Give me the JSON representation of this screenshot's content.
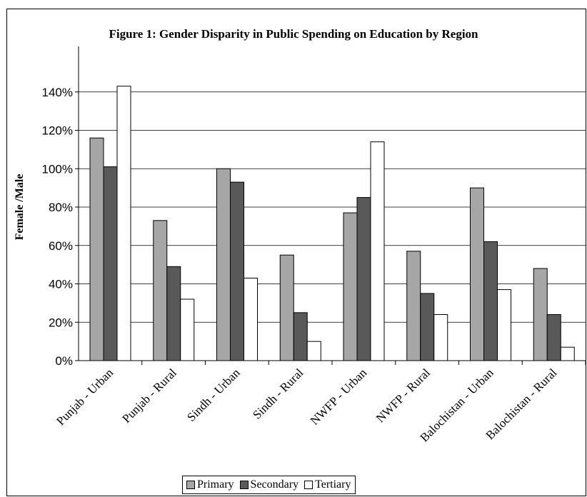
{
  "chart_data": {
    "type": "bar",
    "title": "Figure 1:   Gender Disparity in Public Spending on Education by Region",
    "ylabel": "Female /Male",
    "xlabel": "",
    "ylim": [
      0,
      1.6
    ],
    "y_tick_values": [
      0,
      0.2,
      0.4,
      0.6,
      0.8,
      1.0,
      1.2,
      1.4
    ],
    "y_tick_labels": [
      "0%",
      "20%",
      "40%",
      "60%",
      "80%",
      "100%",
      "120%",
      "140%"
    ],
    "grid": "horizontal",
    "legend_position": "bottom",
    "categories": [
      "Punjab - Urban",
      "Punjab - Rural",
      "Sindh - Urban",
      "Sindh - Rural",
      "NWFP - Urban",
      "NWFP - Rural",
      "Balochistan - Urban",
      "Balochistan - Rural"
    ],
    "series": [
      {
        "name": "Primary",
        "color": "#a6a6a6",
        "values": [
          1.16,
          0.73,
          1.0,
          0.55,
          0.77,
          0.57,
          0.9,
          0.48
        ]
      },
      {
        "name": "Secondary",
        "color": "#595959",
        "values": [
          1.01,
          0.49,
          0.93,
          0.25,
          0.85,
          0.35,
          0.62,
          0.24
        ]
      },
      {
        "name": "Tertiary",
        "color": "#ffffff",
        "values": [
          1.43,
          0.32,
          0.43,
          0.1,
          1.14,
          0.24,
          0.37,
          0.07
        ]
      }
    ]
  }
}
